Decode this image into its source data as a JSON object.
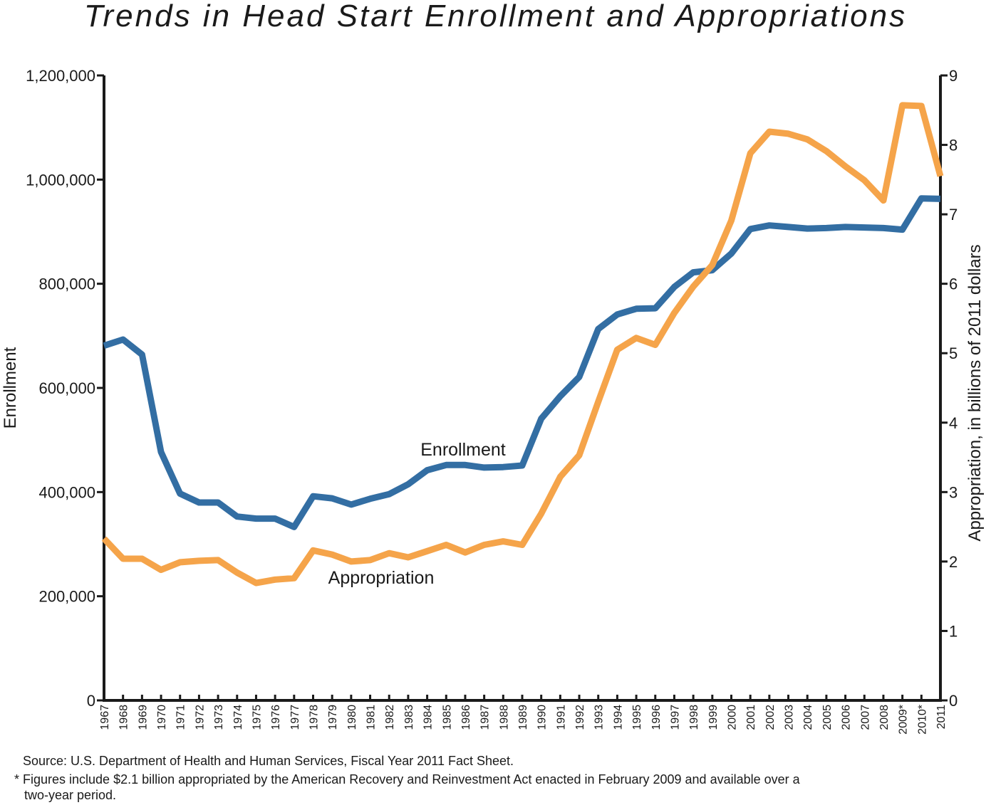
{
  "chart_data": {
    "type": "line",
    "title": "Trends in Head Start Enrollment and Appropriations",
    "ylabel_left": "Enrollment",
    "ylabel_right": "Appropriation, in billions of 2011 dollars",
    "ylim_left": [
      0,
      1200000
    ],
    "ylim_right": [
      0,
      9
    ],
    "yticks_left": [
      "0",
      "200,000",
      "400,000",
      "600,000",
      "800,000",
      "1,000,000",
      "1,200,000"
    ],
    "yticks_right": [
      "0",
      "1",
      "2",
      "3",
      "4",
      "5",
      "6",
      "7",
      "8",
      "9"
    ],
    "grid": false,
    "categories": [
      "1967",
      "1968",
      "1969",
      "1970",
      "1971",
      "1972",
      "1973",
      "1974",
      "1975",
      "1976",
      "1977",
      "1978",
      "1979",
      "1980",
      "1981",
      "1982",
      "1983",
      "1984",
      "1985",
      "1986",
      "1987",
      "1988",
      "1989",
      "1990",
      "1991",
      "1992",
      "1993",
      "1994",
      "1995",
      "1996",
      "1997",
      "1998",
      "1999",
      "2000",
      "2001",
      "2002",
      "2003",
      "2004",
      "2005",
      "2006",
      "2007",
      "2008",
      "2009*",
      "2010*",
      "2011"
    ],
    "series": [
      {
        "name": "Enrollment",
        "axis": "left",
        "color": "#336ea3",
        "values": [
          681000,
          693000,
          664000,
          477000,
          397000,
          380000,
          380000,
          353000,
          349000,
          349000,
          333000,
          392000,
          388000,
          376000,
          387000,
          396000,
          415000,
          442000,
          452000,
          452000,
          447000,
          448000,
          451000,
          541000,
          584000,
          621000,
          713000,
          741000,
          752000,
          753000,
          794000,
          822000,
          826000,
          858000,
          905000,
          912000,
          909000,
          906000,
          907000,
          909000,
          908000,
          907000,
          904000,
          964000,
          963000
        ]
      },
      {
        "name": "Appropriation",
        "axis": "right",
        "color": "#f5a44a",
        "values": [
          2.33,
          2.04,
          2.04,
          1.88,
          1.99,
          2.01,
          2.02,
          1.84,
          1.69,
          1.74,
          1.76,
          2.16,
          2.1,
          2.0,
          2.02,
          2.12,
          2.06,
          2.15,
          2.24,
          2.13,
          2.24,
          2.29,
          2.24,
          2.69,
          3.22,
          3.53,
          4.3,
          5.05,
          5.22,
          5.12,
          5.58,
          5.96,
          6.27,
          6.91,
          7.88,
          8.19,
          8.16,
          8.08,
          7.91,
          7.69,
          7.49,
          7.2,
          8.57,
          8.56,
          7.55
        ]
      }
    ],
    "annotations": [
      "Enrollment",
      "Appropriation"
    ]
  },
  "footnotes": {
    "source": "Source: U.S. Department of Health and Human Services, Fiscal Year 2011 Fact Sheet.",
    "asterisk_line1": "* Figures include $2.1 billion appropriated by the American Recovery and Reinvestment Act enacted in February 2009 and available over a",
    "asterisk_line2": "two-year period."
  }
}
